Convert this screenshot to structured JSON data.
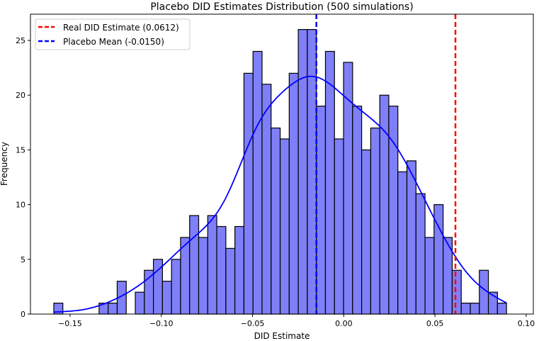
{
  "chart_data": {
    "type": "bar",
    "title": "Placebo DID Estimates Distribution (500 simulations)",
    "xlabel": "DID Estimate",
    "ylabel": "Frequency",
    "xlim": [
      -0.1717,
      0.1039
    ],
    "ylim": [
      0,
      27.4
    ],
    "xticks": [
      -0.15,
      -0.1,
      -0.05,
      0.0,
      0.05,
      0.1
    ],
    "xtick_labels": [
      "−0.15",
      "−0.10",
      "−0.05",
      "0.00",
      "0.05",
      "0.10"
    ],
    "yticks": [
      0,
      5,
      10,
      15,
      20,
      25
    ],
    "ytick_labels": [
      "0",
      "5",
      "10",
      "15",
      "20",
      "25"
    ],
    "grid": false,
    "bins": {
      "start": -0.1589,
      "width": 0.004962,
      "counts": [
        1,
        0,
        0,
        0,
        0,
        1,
        1,
        3,
        0,
        2,
        4,
        5,
        3,
        5,
        7,
        9,
        7,
        9,
        8,
        6,
        8,
        22,
        24,
        21,
        17,
        16,
        22,
        26,
        26,
        19,
        24,
        16,
        23,
        19,
        15,
        17,
        20,
        19,
        13,
        14,
        11,
        7,
        10,
        7,
        4,
        1,
        1,
        4,
        2,
        1
      ]
    },
    "bar_color": "#7f7ff8",
    "kde": {
      "color": "#0000ff",
      "bandwidth": 0.0125
    },
    "vlines": [
      {
        "value": 0.0612,
        "color": "#ff0000",
        "label": "Real DID Estimate (0.0612)"
      },
      {
        "value": -0.015,
        "color": "#0000ff",
        "label": "Placebo Mean (-0.0150)"
      }
    ],
    "legend_position": "top-left"
  }
}
